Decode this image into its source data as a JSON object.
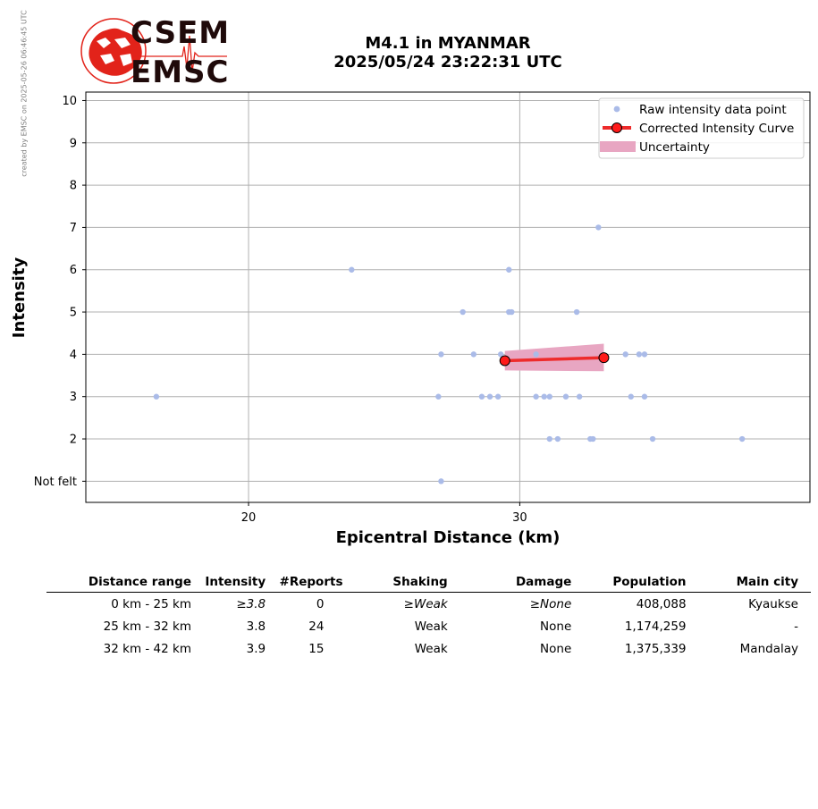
{
  "watermark": "created by EMSC on 2025-05-26 06:46:45 UTC",
  "logo": {
    "line1": "CSEM",
    "line2": "EMSC",
    "colors": {
      "red": "#e2231a",
      "dark": "#1f0a0a"
    }
  },
  "title": {
    "line1": "M4.1 in MYANMAR",
    "line2": "2025/05/24 23:22:31 UTC"
  },
  "chart_data": {
    "type": "scatter",
    "xlabel": "Epicentral Distance (km)",
    "ylabel": "Intensity",
    "xlim": [
      14,
      40.7
    ],
    "ylim": [
      0.5,
      10.2
    ],
    "xticks": [
      20,
      30
    ],
    "yticks": [
      {
        "value": 1,
        "label": "Not felt"
      },
      {
        "value": 2,
        "label": "2"
      },
      {
        "value": 3,
        "label": "3"
      },
      {
        "value": 4,
        "label": "4"
      },
      {
        "value": 5,
        "label": "5"
      },
      {
        "value": 6,
        "label": "6"
      },
      {
        "value": 7,
        "label": "7"
      },
      {
        "value": 8,
        "label": "8"
      },
      {
        "value": 9,
        "label": "9"
      },
      {
        "value": 10,
        "label": "10"
      }
    ],
    "grid": true,
    "legend_position": "top-right",
    "colors": {
      "raw": "#aabbe8",
      "curve": "#ee2b2b",
      "marker_fill": "#ff1a1a",
      "uncertainty": "#e8a6c2",
      "grid": "#b0b0b0"
    },
    "series": [
      {
        "name": "Raw intensity data point",
        "points": [
          [
            16.6,
            3
          ],
          [
            23.8,
            6
          ],
          [
            27.0,
            3
          ],
          [
            27.1,
            4
          ],
          [
            27.1,
            1
          ],
          [
            27.9,
            5
          ],
          [
            28.3,
            4
          ],
          [
            28.6,
            3
          ],
          [
            28.9,
            3
          ],
          [
            29.2,
            3
          ],
          [
            29.3,
            4
          ],
          [
            29.6,
            6
          ],
          [
            29.6,
            5
          ],
          [
            29.7,
            5
          ],
          [
            30.6,
            3
          ],
          [
            30.6,
            4
          ],
          [
            30.9,
            3
          ],
          [
            31.1,
            3
          ],
          [
            31.1,
            2
          ],
          [
            31.4,
            2
          ],
          [
            31.7,
            3
          ],
          [
            32.1,
            5
          ],
          [
            32.2,
            3
          ],
          [
            32.6,
            2
          ],
          [
            32.7,
            2
          ],
          [
            32.9,
            7
          ],
          [
            33.9,
            4
          ],
          [
            34.1,
            3
          ],
          [
            34.4,
            4
          ],
          [
            34.6,
            4
          ],
          [
            34.6,
            3
          ],
          [
            34.9,
            2
          ],
          [
            38.2,
            2
          ]
        ]
      },
      {
        "name": "Corrected Intensity Curve",
        "points": [
          [
            29.45,
            3.85
          ],
          [
            33.1,
            3.92
          ]
        ]
      },
      {
        "name": "Uncertainty",
        "upper": [
          [
            29.45,
            4.08
          ],
          [
            33.1,
            4.25
          ]
        ],
        "lower": [
          [
            29.45,
            3.62
          ],
          [
            33.1,
            3.6
          ]
        ]
      }
    ]
  },
  "table": {
    "headers": [
      "Distance range",
      "Intensity",
      "#Reports",
      "Shaking",
      "Damage",
      "Population",
      "Main city"
    ],
    "rows": [
      [
        "0 km -   25 km",
        "≥3.8",
        "0",
        "≥Weak",
        "≥None",
        "408,088",
        "Kyaukse"
      ],
      [
        "25 km -   32 km",
        "3.8",
        "24",
        "Weak",
        "None",
        "1,174,259",
        "-"
      ],
      [
        "32 km -   42 km",
        "3.9",
        "15",
        "Weak",
        "None",
        "1,375,339",
        "Mandalay"
      ]
    ],
    "italic_cells": [
      [
        0,
        1
      ],
      [
        0,
        3
      ],
      [
        0,
        4
      ]
    ]
  }
}
